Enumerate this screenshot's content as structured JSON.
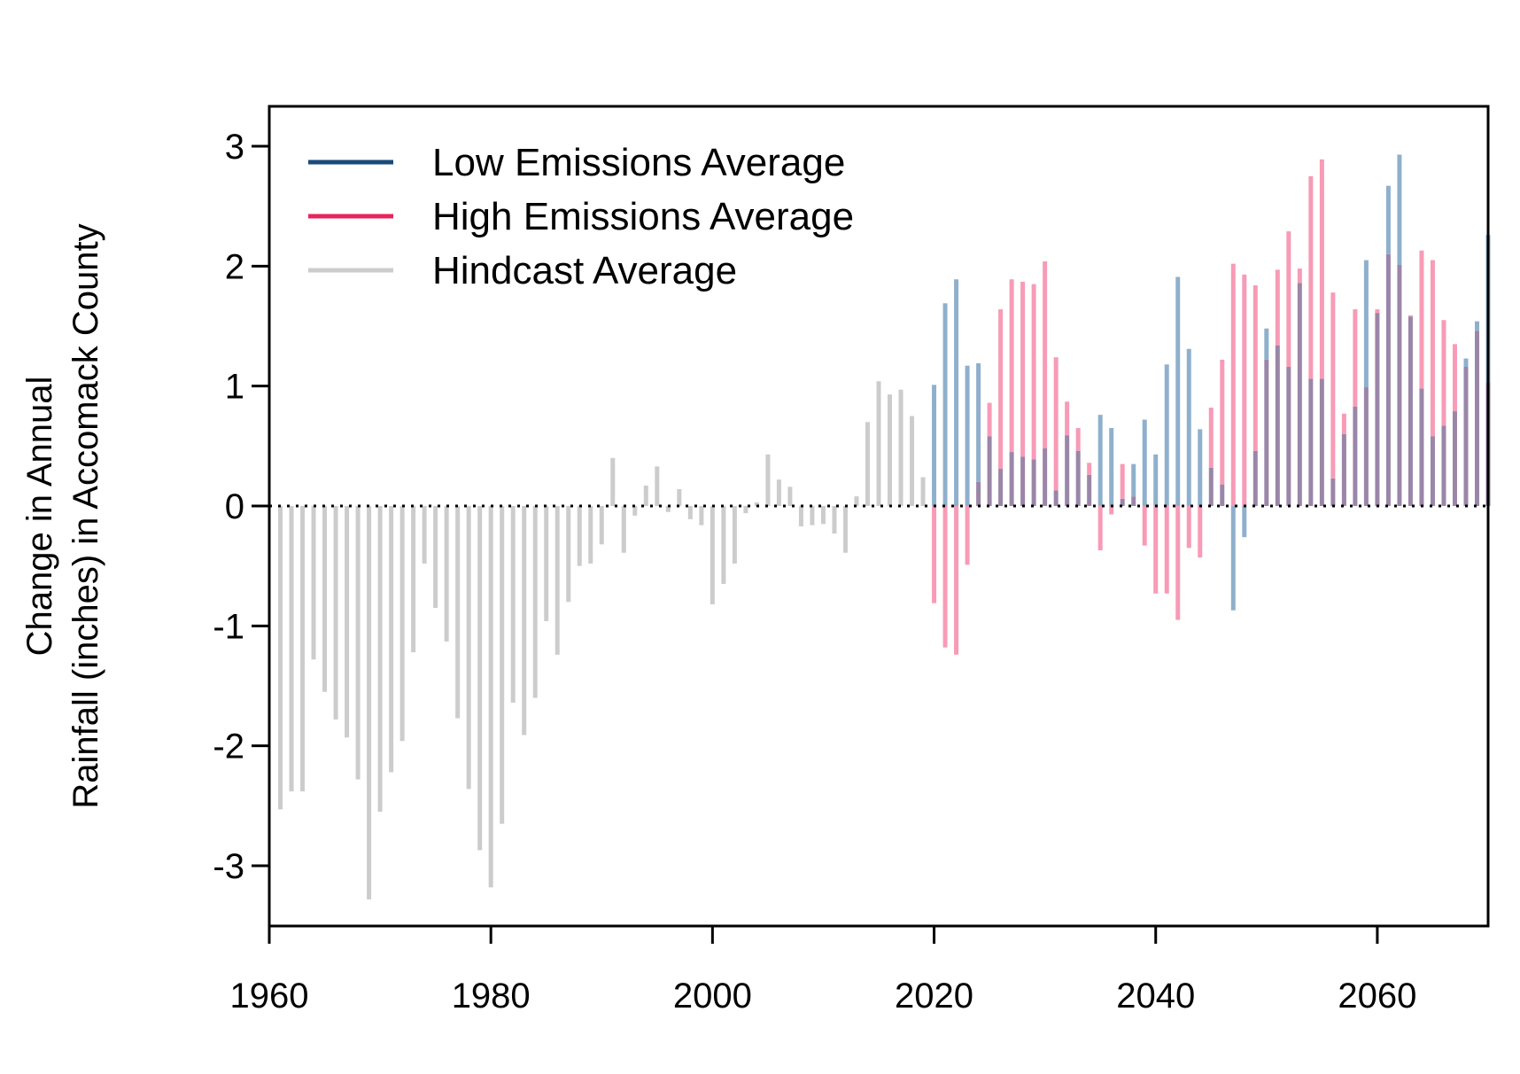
{
  "chart_data": {
    "type": "bar",
    "xlabel": "",
    "ylabel_lines": [
      "Change in Annual",
      "Rainfall (inches) in Accomack County"
    ],
    "xlim": [
      1960,
      2070
    ],
    "ylim": [
      -3.5,
      3.3
    ],
    "x_ticks": [
      1960,
      1980,
      2000,
      2020,
      2040,
      2060
    ],
    "y_ticks": [
      -3,
      -2,
      -1,
      0,
      1,
      2,
      3
    ],
    "legend": {
      "position": "top-left",
      "items": [
        {
          "label": "Low Emissions Average",
          "color": "#1a4a7a"
        },
        {
          "label": "High Emissions Average",
          "color": "#e8245c"
        },
        {
          "label": "Hindcast Average",
          "color": "#cccccc"
        }
      ]
    },
    "colors": {
      "hindcast": "#cccccc",
      "low": "#8fb0cc",
      "high": "#f79bb6",
      "overlap": "#9a86a8"
    },
    "series": [
      {
        "name": "Hindcast Average",
        "x": [
          1961,
          1962,
          1963,
          1964,
          1965,
          1966,
          1967,
          1968,
          1969,
          1970,
          1971,
          1972,
          1973,
          1974,
          1975,
          1976,
          1977,
          1978,
          1979,
          1980,
          1981,
          1982,
          1983,
          1984,
          1985,
          1986,
          1987,
          1988,
          1989,
          1990,
          1991,
          1992,
          1993,
          1994,
          1995,
          1996,
          1997,
          1998,
          1999,
          2000,
          2001,
          2002,
          2003,
          2004,
          2005,
          2006,
          2007,
          2008,
          2009,
          2010,
          2011,
          2012,
          2013,
          2014,
          2015,
          2016,
          2017,
          2018,
          2019
        ],
        "values": [
          -2.53,
          -2.38,
          -2.38,
          -1.28,
          -1.55,
          -1.78,
          -1.93,
          -2.28,
          -3.28,
          -2.55,
          -2.22,
          -1.96,
          -1.22,
          -0.48,
          -0.85,
          -1.13,
          -1.77,
          -2.36,
          -2.87,
          -3.18,
          -2.65,
          -1.64,
          -1.91,
          -1.6,
          -0.96,
          -1.24,
          -0.8,
          -0.5,
          -0.48,
          -0.32,
          0.4,
          -0.39,
          -0.08,
          0.17,
          0.33,
          -0.05,
          0.14,
          -0.11,
          -0.16,
          -0.82,
          -0.65,
          -0.48,
          -0.06,
          0.03,
          0.43,
          0.22,
          0.16,
          -0.17,
          -0.16,
          -0.15,
          -0.23,
          -0.39,
          0.08,
          0.7,
          1.04,
          0.93,
          0.97,
          0.75,
          0.24
        ]
      },
      {
        "name": "Low Emissions Average",
        "x": [
          2020,
          2021,
          2022,
          2023,
          2024,
          2025,
          2026,
          2027,
          2028,
          2029,
          2030,
          2031,
          2032,
          2033,
          2034,
          2035,
          2036,
          2037,
          2038,
          2039,
          2040,
          2041,
          2042,
          2043,
          2044,
          2045,
          2046,
          2047,
          2048,
          2049,
          2050,
          2051,
          2052,
          2053,
          2054,
          2055,
          2056,
          2057,
          2058,
          2059,
          2060,
          2061,
          2062,
          2063,
          2064,
          2065,
          2066,
          2067,
          2068,
          2069,
          2070
        ],
        "values": [
          1.01,
          1.69,
          1.89,
          1.17,
          1.19,
          0.58,
          0.31,
          0.45,
          0.41,
          0.39,
          0.48,
          0.13,
          0.59,
          0.46,
          0.26,
          0.76,
          0.65,
          0.06,
          0.35,
          0.72,
          0.43,
          1.18,
          1.91,
          1.31,
          0.64,
          0.32,
          0.18,
          -0.87,
          -0.26,
          0.46,
          1.48,
          1.34,
          1.16,
          1.86,
          1.06,
          1.06,
          0.23,
          0.6,
          0.83,
          2.05,
          1.61,
          2.67,
          2.93,
          1.58,
          0.98,
          0.58,
          0.67,
          0.79,
          1.23,
          1.54,
          2.26
        ]
      },
      {
        "name": "High Emissions Average",
        "x": [
          2020,
          2021,
          2022,
          2023,
          2024,
          2025,
          2026,
          2027,
          2028,
          2029,
          2030,
          2031,
          2032,
          2033,
          2034,
          2035,
          2036,
          2037,
          2038,
          2039,
          2040,
          2041,
          2042,
          2043,
          2044,
          2045,
          2046,
          2047,
          2048,
          2049,
          2050,
          2051,
          2052,
          2053,
          2054,
          2055,
          2056,
          2057,
          2058,
          2059,
          2060,
          2061,
          2062,
          2063,
          2064,
          2065,
          2066,
          2067,
          2068,
          2069,
          2070
        ],
        "values": [
          -0.81,
          -1.18,
          -1.24,
          -0.49,
          0.2,
          0.86,
          1.64,
          1.89,
          1.87,
          1.85,
          2.04,
          1.24,
          0.87,
          0.65,
          0.36,
          -0.37,
          -0.07,
          0.35,
          0.08,
          -0.33,
          -0.73,
          -0.73,
          -0.95,
          -0.35,
          -0.43,
          0.82,
          1.22,
          2.02,
          1.93,
          1.84,
          1.22,
          1.97,
          2.29,
          1.98,
          2.75,
          2.89,
          1.78,
          0.77,
          1.64,
          0.99,
          1.64,
          2.1,
          2.01,
          1.59,
          2.13,
          2.05,
          1.55,
          1.35,
          1.16,
          1.46,
          1.03
        ]
      }
    ]
  }
}
